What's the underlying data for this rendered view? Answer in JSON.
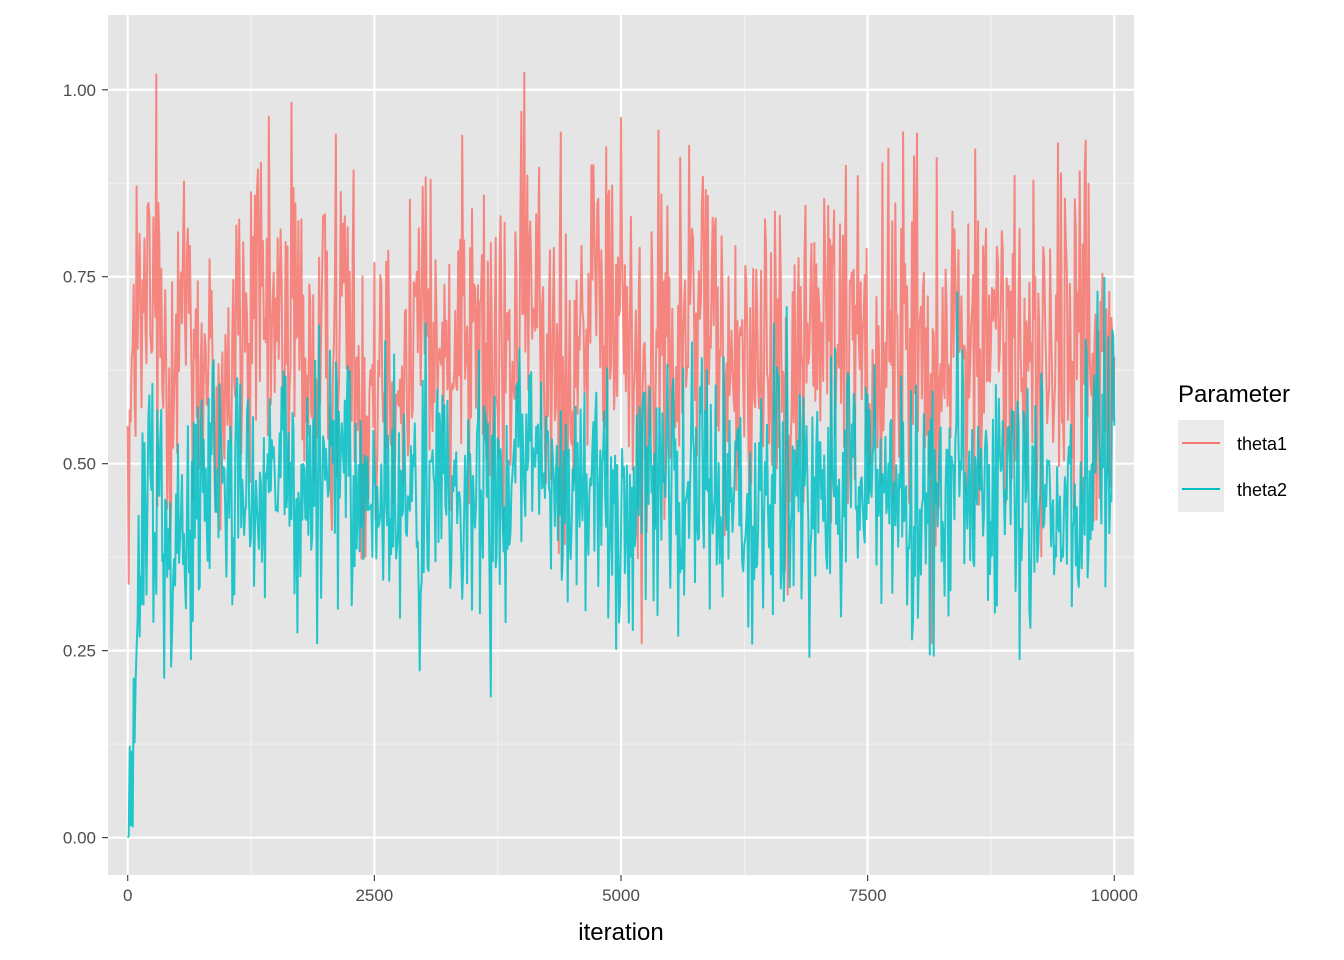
{
  "chart_data": {
    "type": "line",
    "title": "",
    "xlabel": "iteration",
    "ylabel": "",
    "xlim": [
      -200,
      10200
    ],
    "ylim": [
      -0.05,
      1.1
    ],
    "x_ticks": [
      0,
      2500,
      5000,
      7500,
      10000
    ],
    "x_tick_labels": [
      "0",
      "2500",
      "5000",
      "7500",
      "10000"
    ],
    "y_ticks": [
      0,
      0.25,
      0.5,
      0.75,
      1.0
    ],
    "y_tick_labels": [
      "0.00",
      "0.25",
      "0.50",
      "0.75",
      "1.00"
    ],
    "grid": true,
    "background": "#e5e5e5",
    "legend": {
      "title": "Parameter",
      "position": "right"
    },
    "series": [
      {
        "name": "theta1",
        "color": "#f8766d",
        "x": [
          0,
          200,
          400,
          600,
          800,
          1000,
          1200,
          1400,
          1600,
          1800,
          2000,
          2200,
          2400,
          2600,
          2800,
          3000,
          3200,
          3400,
          3600,
          3800,
          4000,
          4200,
          4400,
          4600,
          4800,
          5000,
          5200,
          5400,
          5600,
          5800,
          6000,
          6200,
          6400,
          6600,
          6800,
          7000,
          7200,
          7400,
          7600,
          7800,
          8000,
          8200,
          8400,
          8600,
          8800,
          9000,
          9200,
          9400,
          9600,
          9800,
          10000
        ],
        "y": [
          0.55,
          0.72,
          0.65,
          0.75,
          0.58,
          0.62,
          0.7,
          0.66,
          0.72,
          0.65,
          0.63,
          0.74,
          0.6,
          0.68,
          0.64,
          0.7,
          0.62,
          0.76,
          0.66,
          0.61,
          0.72,
          0.68,
          0.63,
          0.7,
          0.66,
          0.73,
          0.6,
          0.66,
          0.64,
          0.75,
          0.62,
          0.68,
          0.63,
          0.69,
          0.61,
          0.72,
          0.65,
          0.7,
          0.63,
          0.66,
          0.7,
          0.6,
          0.68,
          0.64,
          0.71,
          0.63,
          0.67,
          0.62,
          0.69,
          0.66,
          0.55
        ],
        "y_min_observed": 0.26,
        "y_max_observed": 1.05
      },
      {
        "name": "theta2",
        "color": "#00bfc4",
        "x": [
          0,
          200,
          400,
          600,
          800,
          1000,
          1200,
          1400,
          1600,
          1800,
          2000,
          2200,
          2400,
          2600,
          2800,
          3000,
          3200,
          3400,
          3600,
          3800,
          4000,
          4200,
          4400,
          4600,
          4800,
          5000,
          5200,
          5400,
          5600,
          5800,
          6000,
          6200,
          6400,
          6600,
          6800,
          7000,
          7200,
          7400,
          7600,
          7800,
          8000,
          8200,
          8400,
          8600,
          8800,
          9000,
          9200,
          9400,
          9600,
          9800,
          10000
        ],
        "y": [
          0.0,
          0.48,
          0.45,
          0.42,
          0.5,
          0.46,
          0.47,
          0.44,
          0.5,
          0.45,
          0.48,
          0.52,
          0.46,
          0.44,
          0.47,
          0.45,
          0.49,
          0.43,
          0.48,
          0.46,
          0.5,
          0.44,
          0.47,
          0.45,
          0.49,
          0.42,
          0.46,
          0.48,
          0.44,
          0.5,
          0.45,
          0.47,
          0.43,
          0.49,
          0.46,
          0.44,
          0.48,
          0.45,
          0.5,
          0.46,
          0.47,
          0.43,
          0.49,
          0.45,
          0.47,
          0.44,
          0.48,
          0.46,
          0.45,
          0.47,
          0.6
        ],
        "y_min_observed": 0.0,
        "y_max_observed": 0.81
      }
    ]
  }
}
